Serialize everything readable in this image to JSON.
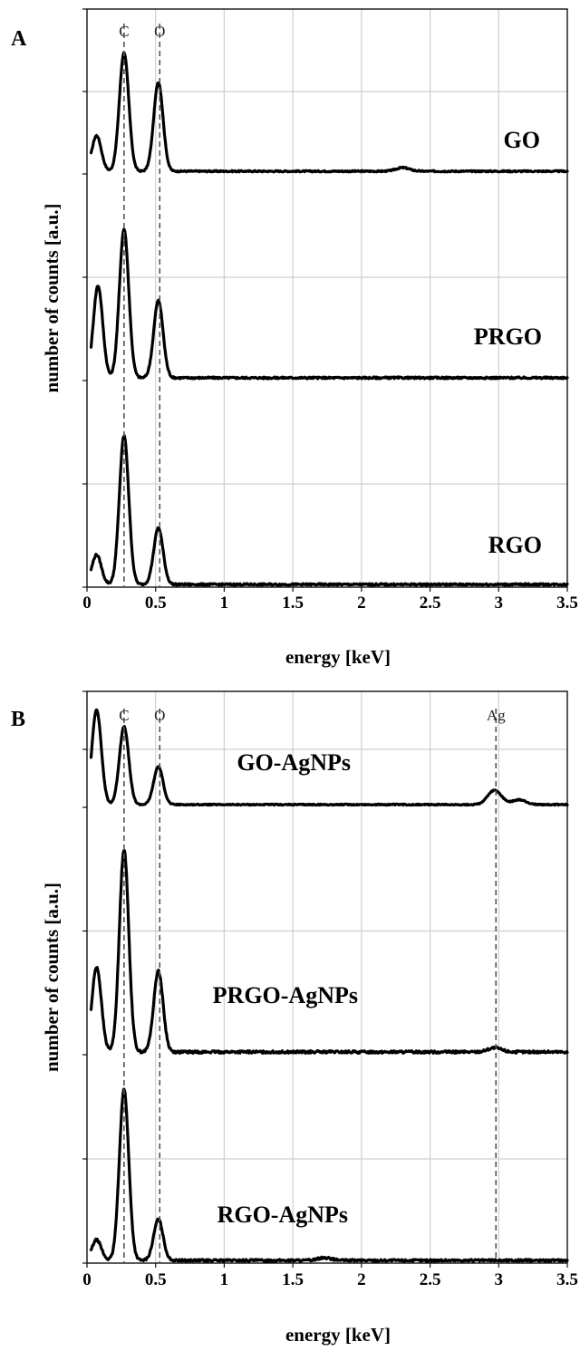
{
  "chart_data": [
    {
      "type": "line",
      "panel_label": "A",
      "xlabel": "energy [keV]",
      "ylabel": "number of counts [a.u.]",
      "xlim": [
        0,
        3.5
      ],
      "xticks": [
        "0",
        "0.5",
        "1",
        "1.5",
        "2",
        "2.5",
        "3",
        "3.5"
      ],
      "grid": true,
      "reference_lines": [
        {
          "label": "C",
          "x": 0.27
        },
        {
          "label": "O",
          "x": 0.53
        }
      ],
      "series": [
        {
          "name": "GO",
          "peaks": [
            {
              "x": 0.07,
              "height": 0.3
            },
            {
              "x": 0.27,
              "height": 1.0
            },
            {
              "x": 0.52,
              "height": 0.75
            },
            {
              "x": 2.3,
              "height": 0.03
            }
          ]
        },
        {
          "name": "PRGO",
          "peaks": [
            {
              "x": 0.08,
              "height": 0.62
            },
            {
              "x": 0.27,
              "height": 1.0
            },
            {
              "x": 0.52,
              "height": 0.52
            }
          ]
        },
        {
          "name": "RGO",
          "peaks": [
            {
              "x": 0.07,
              "height": 0.2
            },
            {
              "x": 0.27,
              "height": 1.0
            },
            {
              "x": 0.52,
              "height": 0.38
            }
          ]
        }
      ]
    },
    {
      "type": "line",
      "panel_label": "B",
      "xlabel": "energy [keV]",
      "ylabel": "number of counts [a.u.]",
      "xlim": [
        0,
        3.5
      ],
      "xticks": [
        "0",
        "0.5",
        "1",
        "1.5",
        "2",
        "2.5",
        "3",
        "3.5"
      ],
      "grid": true,
      "reference_lines": [
        {
          "label": "C",
          "x": 0.27
        },
        {
          "label": "O",
          "x": 0.53
        },
        {
          "label": "Ag",
          "x": 2.98
        }
      ],
      "series": [
        {
          "name": "GO-AgNPs",
          "peaks": [
            {
              "x": 0.07,
              "height": 1.0
            },
            {
              "x": 0.27,
              "height": 0.82
            },
            {
              "x": 0.52,
              "height": 0.4
            },
            {
              "x": 2.97,
              "height": 0.15
            },
            {
              "x": 3.15,
              "height": 0.05
            }
          ]
        },
        {
          "name": "PRGO-AgNPs",
          "peaks": [
            {
              "x": 0.07,
              "height": 0.42
            },
            {
              "x": 0.27,
              "height": 1.0
            },
            {
              "x": 0.52,
              "height": 0.4
            },
            {
              "x": 2.97,
              "height": 0.02
            }
          ]
        },
        {
          "name": "RGO-AgNPs",
          "peaks": [
            {
              "x": 0.07,
              "height": 0.12
            },
            {
              "x": 0.27,
              "height": 1.0
            },
            {
              "x": 0.52,
              "height": 0.24
            },
            {
              "x": 1.73,
              "height": 0.015
            }
          ]
        }
      ]
    }
  ]
}
